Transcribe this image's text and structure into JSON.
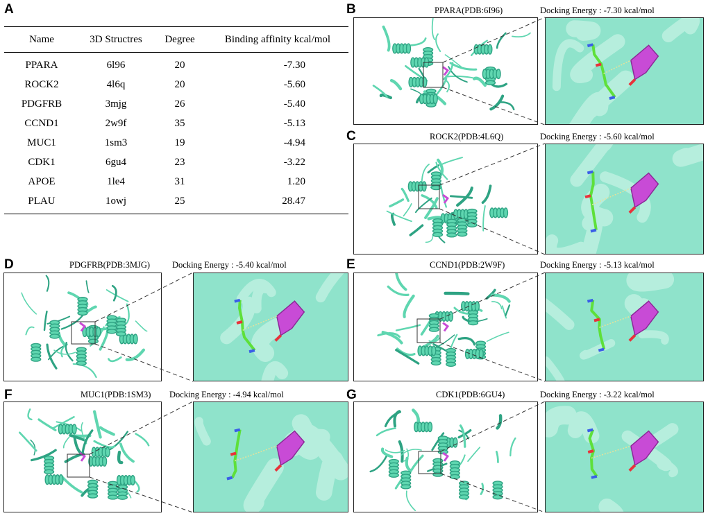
{
  "panel_letters": [
    "A",
    "B",
    "C",
    "D",
    "E",
    "F",
    "G"
  ],
  "table": {
    "headers": [
      "Name",
      "3D Structres",
      "Degree",
      "Binding affinity kcal/mol"
    ],
    "rows": [
      [
        "PPARA",
        "6l96",
        "20",
        "-7.30"
      ],
      [
        "ROCK2",
        "4l6q",
        "20",
        "-5.60"
      ],
      [
        "PDGFRB",
        "3mjg",
        "26",
        "-5.40"
      ],
      [
        "CCND1",
        "2w9f",
        "35",
        "-5.13"
      ],
      [
        "MUC1",
        "1sm3",
        "19",
        "-4.94"
      ],
      [
        "CDK1",
        "6gu4",
        "23",
        "-3.22"
      ],
      [
        "APOE",
        "1le4",
        "31",
        "1.20"
      ],
      [
        "PLAU",
        "1owj",
        "25",
        "28.47"
      ]
    ]
  },
  "panels": {
    "B": {
      "protein": "PPARA(PDB:6I96)",
      "energy": "Docking Energy : -7.30 kcal/mol"
    },
    "C": {
      "protein": "ROCK2(PDB:4L6Q)",
      "energy": "Docking Energy : -5.60 kcal/mol"
    },
    "D": {
      "protein": "PDGFRB(PDB:3MJG)",
      "energy": "Docking Energy : -5.40 kcal/mol"
    },
    "E": {
      "protein": "CCND1(PDB:2W9F)",
      "energy": "Docking Energy : -5.13 kcal/mol"
    },
    "F": {
      "protein": "MUC1(PDB:1SM3)",
      "energy": "Docking Energy : -4.94 kcal/mol"
    },
    "G": {
      "protein": "CDK1(PDB:6GU4)",
      "energy": "Docking Energy : -3.22 kcal/mol"
    }
  },
  "colors": {
    "protein": "#5fd6b0",
    "protein_dark": "#2ea383",
    "zoom_bg": "#8fe3cb",
    "ligand": "#c84bd6",
    "residue": "#5ee03a",
    "oxygen": "#e8323a",
    "nitrogen": "#3a5ee8"
  }
}
